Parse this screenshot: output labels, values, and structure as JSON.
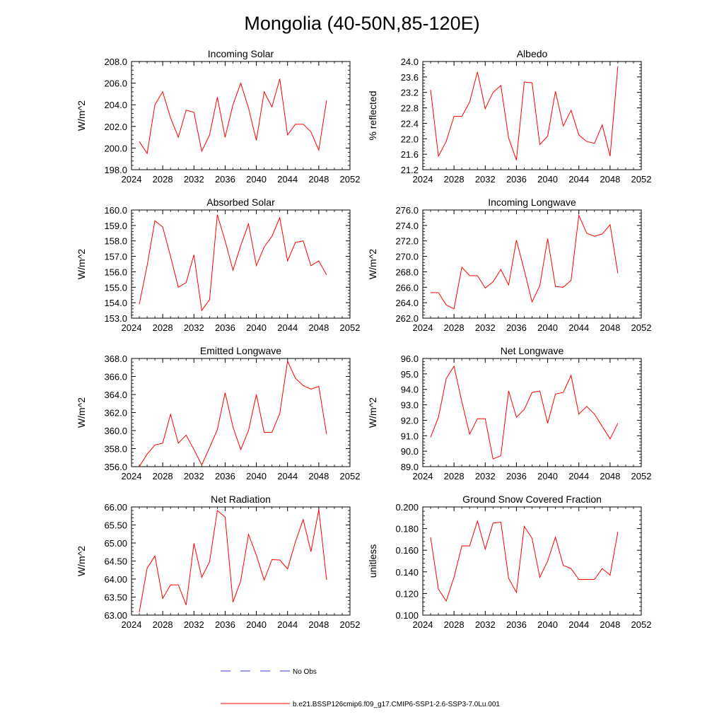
{
  "figure": {
    "title": "Mongolia (40-50N,85-120E)"
  },
  "legend": {
    "obs_label": "No Obs",
    "model_label": "b.e21.BSSP126cmip6.f09_g17.CMIP6-SSP1-2.6-SSP3-7.0Lu.001",
    "obs_color": "#3b3bdc",
    "model_color": "#ff0000"
  },
  "chart_data": [
    {
      "type": "line",
      "title": "Incoming Solar",
      "ylabel": "W/m^2",
      "xlim": [
        2024,
        2052
      ],
      "ylim": [
        198.0,
        208.0
      ],
      "xticks": [
        "2024",
        "2028",
        "2032",
        "2036",
        "2040",
        "2044",
        "2048",
        "2052"
      ],
      "yticks": [
        "198.0",
        "200.0",
        "202.0",
        "204.0",
        "206.0",
        "208.0"
      ],
      "x": [
        2025,
        2026,
        2027,
        2028,
        2029,
        2030,
        2031,
        2032,
        2033,
        2034,
        2035,
        2036,
        2037,
        2038,
        2039,
        2040,
        2041,
        2042,
        2043,
        2044,
        2045,
        2046,
        2047,
        2048,
        2049
      ],
      "values": [
        200.6,
        199.5,
        204.0,
        205.2,
        202.8,
        201.0,
        203.5,
        203.3,
        199.7,
        201.2,
        204.7,
        201.0,
        204.0,
        206.0,
        203.7,
        200.7,
        205.2,
        203.8,
        206.4,
        201.2,
        202.2,
        202.2,
        201.5,
        199.8,
        204.4
      ]
    },
    {
      "type": "line",
      "title": "Albedo",
      "ylabel": "% reflected",
      "xlim": [
        2024,
        2052
      ],
      "ylim": [
        21.2,
        24.0
      ],
      "xticks": [
        "2024",
        "2028",
        "2032",
        "2036",
        "2040",
        "2044",
        "2048",
        "2052"
      ],
      "yticks": [
        "21.2",
        "21.6",
        "22.0",
        "22.4",
        "22.8",
        "23.2",
        "23.6",
        "24.0"
      ],
      "x": [
        2025,
        2026,
        2027,
        2028,
        2029,
        2030,
        2031,
        2032,
        2033,
        2034,
        2035,
        2036,
        2037,
        2038,
        2039,
        2040,
        2041,
        2042,
        2043,
        2044,
        2045,
        2046,
        2047,
        2048,
        2049
      ],
      "values": [
        23.27,
        21.55,
        21.93,
        22.58,
        22.58,
        22.95,
        23.73,
        22.78,
        23.2,
        23.38,
        22.02,
        21.45,
        23.47,
        23.45,
        21.85,
        22.07,
        23.23,
        22.33,
        22.74,
        22.1,
        21.93,
        21.88,
        22.36,
        21.55,
        23.88
      ]
    },
    {
      "type": "line",
      "title": "Absorbed Solar",
      "ylabel": "W/m^2",
      "xlim": [
        2024,
        2052
      ],
      "ylim": [
        153.0,
        160.0
      ],
      "xticks": [
        "2024",
        "2028",
        "2032",
        "2036",
        "2040",
        "2044",
        "2048",
        "2052"
      ],
      "yticks": [
        "153.0",
        "154.0",
        "155.0",
        "156.0",
        "157.0",
        "158.0",
        "159.0",
        "160.0"
      ],
      "x": [
        2025,
        2026,
        2027,
        2028,
        2029,
        2030,
        2031,
        2032,
        2033,
        2034,
        2035,
        2036,
        2037,
        2038,
        2039,
        2040,
        2041,
        2042,
        2043,
        2044,
        2045,
        2046,
        2047,
        2048,
        2049
      ],
      "values": [
        153.9,
        156.4,
        159.3,
        158.9,
        157.0,
        155.0,
        155.3,
        157.1,
        153.5,
        154.2,
        159.7,
        158.0,
        156.1,
        157.7,
        159.1,
        156.4,
        157.6,
        158.3,
        159.5,
        156.7,
        157.9,
        158.0,
        156.4,
        156.7,
        155.8
      ]
    },
    {
      "type": "line",
      "title": "Incoming Longwave",
      "ylabel": "W/m^2",
      "xlim": [
        2024,
        2052
      ],
      "ylim": [
        262.0,
        276.0
      ],
      "xticks": [
        "2024",
        "2028",
        "2032",
        "2036",
        "2040",
        "2044",
        "2048",
        "2052"
      ],
      "yticks": [
        "262.0",
        "264.0",
        "266.0",
        "268.0",
        "270.0",
        "272.0",
        "274.0",
        "276.0"
      ],
      "x": [
        2025,
        2026,
        2027,
        2028,
        2029,
        2030,
        2031,
        2032,
        2033,
        2034,
        2035,
        2036,
        2037,
        2038,
        2039,
        2040,
        2041,
        2042,
        2043,
        2044,
        2045,
        2046,
        2047,
        2048,
        2049
      ],
      "values": [
        265.3,
        265.3,
        263.7,
        263.2,
        268.6,
        267.5,
        267.5,
        265.9,
        266.7,
        268.3,
        266.3,
        272.1,
        268.2,
        264.1,
        266.2,
        272.3,
        266.1,
        266.0,
        266.9,
        275.3,
        273.0,
        272.6,
        272.9,
        274.1,
        267.8
      ]
    },
    {
      "type": "line",
      "title": "Emitted Longwave",
      "ylabel": "W/m^2",
      "xlim": [
        2024,
        2052
      ],
      "ylim": [
        356.0,
        368.0
      ],
      "xticks": [
        "2024",
        "2028",
        "2032",
        "2036",
        "2040",
        "2044",
        "2048",
        "2052"
      ],
      "yticks": [
        "356.0",
        "358.0",
        "360.0",
        "362.0",
        "364.0",
        "366.0",
        "368.0"
      ],
      "x": [
        2025,
        2026,
        2027,
        2028,
        2029,
        2030,
        2031,
        2032,
        2033,
        2034,
        2035,
        2036,
        2037,
        2038,
        2039,
        2040,
        2041,
        2042,
        2043,
        2044,
        2045,
        2046,
        2047,
        2048,
        2049
      ],
      "values": [
        356.0,
        357.4,
        358.4,
        358.6,
        361.8,
        358.6,
        359.5,
        357.9,
        356.2,
        358.1,
        360.1,
        364.2,
        360.4,
        357.9,
        360.0,
        364.0,
        359.8,
        359.8,
        361.9,
        367.7,
        365.8,
        365.0,
        364.6,
        364.9,
        359.6
      ]
    },
    {
      "type": "line",
      "title": "Net Longwave",
      "ylabel": "W/m^2",
      "xlim": [
        2024,
        2052
      ],
      "ylim": [
        89.0,
        96.0
      ],
      "xticks": [
        "2024",
        "2028",
        "2032",
        "2036",
        "2040",
        "2044",
        "2048",
        "2052"
      ],
      "yticks": [
        "89.0",
        "90.0",
        "91.0",
        "92.0",
        "93.0",
        "94.0",
        "95.0",
        "96.0"
      ],
      "x": [
        2025,
        2026,
        2027,
        2028,
        2029,
        2030,
        2031,
        2032,
        2033,
        2034,
        2035,
        2036,
        2037,
        2038,
        2039,
        2040,
        2041,
        2042,
        2043,
        2044,
        2045,
        2046,
        2047,
        2048,
        2049
      ],
      "values": [
        90.9,
        92.2,
        94.7,
        95.5,
        93.2,
        91.1,
        92.1,
        92.1,
        89.5,
        89.7,
        93.9,
        92.2,
        92.7,
        93.8,
        93.9,
        91.8,
        93.7,
        93.8,
        94.9,
        92.4,
        92.9,
        92.4,
        91.6,
        90.8,
        91.8
      ]
    },
    {
      "type": "line",
      "title": "Net Radiation",
      "ylabel": "W/m^2",
      "xlim": [
        2024,
        2052
      ],
      "ylim": [
        63.0,
        66.0
      ],
      "xticks": [
        "2024",
        "2028",
        "2032",
        "2036",
        "2040",
        "2044",
        "2048",
        "2052"
      ],
      "yticks": [
        "63.00",
        "63.50",
        "64.00",
        "64.50",
        "65.00",
        "65.50",
        "66.00"
      ],
      "x": [
        2025,
        2026,
        2027,
        2028,
        2029,
        2030,
        2031,
        2032,
        2033,
        2034,
        2035,
        2036,
        2037,
        2038,
        2039,
        2040,
        2041,
        2042,
        2043,
        2044,
        2045,
        2046,
        2047,
        2048,
        2049
      ],
      "values": [
        63.08,
        64.3,
        64.64,
        63.46,
        63.84,
        63.84,
        63.28,
        64.99,
        64.05,
        64.48,
        65.9,
        65.72,
        63.36,
        63.95,
        65.24,
        64.66,
        63.97,
        64.54,
        64.53,
        64.28,
        65.03,
        65.65,
        64.76,
        65.93,
        63.98
      ]
    },
    {
      "type": "line",
      "title": "Ground Snow Covered Fraction",
      "ylabel": "unitless",
      "xlim": [
        2024,
        2052
      ],
      "ylim": [
        0.1,
        0.2
      ],
      "xticks": [
        "2024",
        "2028",
        "2032",
        "2036",
        "2040",
        "2044",
        "2048",
        "2052"
      ],
      "yticks": [
        "0.100",
        "0.120",
        "0.140",
        "0.160",
        "0.180",
        "0.200"
      ],
      "x": [
        2025,
        2026,
        2027,
        2028,
        2029,
        2030,
        2031,
        2032,
        2033,
        2034,
        2035,
        2036,
        2037,
        2038,
        2039,
        2040,
        2041,
        2042,
        2043,
        2044,
        2045,
        2046,
        2047,
        2048,
        2049
      ],
      "values": [
        0.172,
        0.124,
        0.113,
        0.135,
        0.164,
        0.164,
        0.187,
        0.161,
        0.185,
        0.186,
        0.134,
        0.121,
        0.182,
        0.171,
        0.135,
        0.15,
        0.172,
        0.146,
        0.143,
        0.133,
        0.133,
        0.133,
        0.143,
        0.137,
        0.177
      ]
    }
  ]
}
